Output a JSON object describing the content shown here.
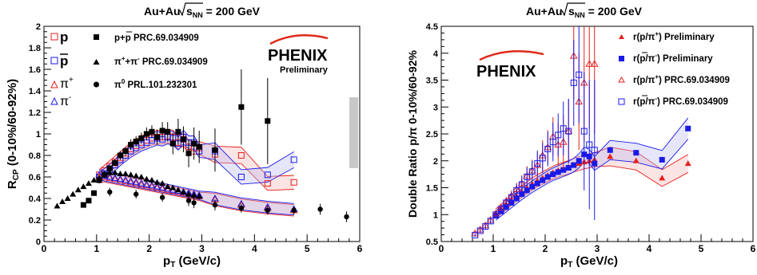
{
  "colors": {
    "red": "#e8201c",
    "blue": "#1a1ae8",
    "black": "#000000",
    "band_red": "#f3b3b3",
    "band_blue": "#b8b8f0",
    "sys_gray": "#c8c8c8",
    "phenix_arc": "#e02a1a"
  },
  "chart_data": [
    {
      "type": "scatter",
      "title": "Au+Au √s_NN = 200 GeV",
      "title_parts": {
        "prefix": "Au+Au",
        "sqrt": "s",
        "sub": "NN",
        "suffix": " = 200 GeV"
      },
      "xlabel": "p_T (GeV/c)",
      "xlabel_parts": {
        "main": "p",
        "sub": "T",
        "rest": " (GeV/c)"
      },
      "ylabel": "R_CP (0-10%/60-92%)",
      "ylabel_parts": {
        "main": "R",
        "sub": "CP",
        "rest": " (0-10%/60-92%)"
      },
      "xlim": [
        0,
        6
      ],
      "ylim": [
        0,
        2
      ],
      "xticks": [
        "0",
        "1",
        "2",
        "3",
        "4",
        "5",
        "6"
      ],
      "yticks": [
        "0",
        "0.2",
        "0.4",
        "0.6",
        "0.8",
        "1",
        "1.2",
        "1.4",
        "1.6",
        "1.8",
        "2"
      ],
      "logo": {
        "text": "PHENIX",
        "sub": "Preliminary"
      },
      "legend_left": [
        "p",
        "p",
        "π⁺",
        "π⁻"
      ],
      "legend_left_parts": [
        {
          "base": "p",
          "sup": ""
        },
        {
          "base": "p",
          "sup": "",
          "bar": true
        },
        {
          "base": "π",
          "sup": "+"
        },
        {
          "base": "π",
          "sup": "-"
        }
      ],
      "legend_right": [
        "p+p PRC.69.034909",
        "π⁺+π⁻ PRC.69.034909",
        "π⁰ PRL.101.232301"
      ],
      "legend_right_parts": [
        {
          "a": "p+",
          "bar": "p",
          "b": " PRC.69.034909"
        },
        {
          "a": "π",
          "sup1": "+",
          "mid": "+π",
          "sup2": "-",
          "b": " PRC.69.034909"
        },
        {
          "a": "π",
          "sup1": "0",
          "b": " PRL.101.232301"
        }
      ],
      "series": [
        {
          "name": "p",
          "marker": "open-square",
          "color": "red",
          "x": [
            1.05,
            1.15,
            1.25,
            1.35,
            1.45,
            1.55,
            1.65,
            1.75,
            1.85,
            1.95,
            2.05,
            2.15,
            2.25,
            2.35,
            2.45,
            2.55,
            2.65,
            2.75,
            2.85,
            2.95,
            3.25,
            3.75,
            4.25,
            4.75
          ],
          "y": [
            0.62,
            0.66,
            0.7,
            0.74,
            0.78,
            0.82,
            0.86,
            0.89,
            0.92,
            0.94,
            0.96,
            0.97,
            0.97,
            0.98,
            0.97,
            0.92,
            0.95,
            0.88,
            0.87,
            0.87,
            0.81,
            0.8,
            0.54,
            0.55
          ]
        },
        {
          "name": "p̄",
          "marker": "open-square",
          "color": "blue",
          "x": [
            1.05,
            1.15,
            1.25,
            1.35,
            1.45,
            1.55,
            1.65,
            1.75,
            1.85,
            1.95,
            2.05,
            2.15,
            2.25,
            2.35,
            2.45,
            2.55,
            2.65,
            2.75,
            2.85,
            2.95,
            3.25,
            3.75,
            4.25,
            4.75
          ],
          "y": [
            0.6,
            0.63,
            0.67,
            0.71,
            0.76,
            0.8,
            0.84,
            0.87,
            0.9,
            0.92,
            0.94,
            0.96,
            0.95,
            0.97,
            0.96,
            0.91,
            0.97,
            0.92,
            0.92,
            0.84,
            0.84,
            0.6,
            0.62,
            0.76
          ]
        },
        {
          "name": "π⁺",
          "marker": "open-triangle",
          "color": "red",
          "x": [
            1.05,
            1.15,
            1.25,
            1.35,
            1.45,
            1.55,
            1.65,
            1.75,
            1.85,
            1.95,
            2.05,
            2.15,
            2.25,
            2.35,
            2.45,
            2.55,
            2.65,
            2.75,
            2.85,
            2.95,
            3.25,
            3.75,
            4.25,
            4.75
          ],
          "y": [
            0.6,
            0.6,
            0.59,
            0.58,
            0.57,
            0.56,
            0.55,
            0.54,
            0.53,
            0.52,
            0.51,
            0.5,
            0.49,
            0.48,
            0.47,
            0.46,
            0.45,
            0.44,
            0.43,
            0.42,
            0.39,
            0.34,
            0.31,
            0.29
          ]
        },
        {
          "name": "π⁻",
          "marker": "open-triangle",
          "color": "blue",
          "x": [
            1.05,
            1.15,
            1.25,
            1.35,
            1.45,
            1.55,
            1.65,
            1.75,
            1.85,
            1.95,
            2.05,
            2.15,
            2.25,
            2.35,
            2.45,
            2.55,
            2.65,
            2.75,
            2.85,
            2.95,
            3.25,
            3.75,
            4.25,
            4.75
          ],
          "y": [
            0.62,
            0.61,
            0.6,
            0.59,
            0.58,
            0.57,
            0.56,
            0.55,
            0.54,
            0.53,
            0.52,
            0.51,
            0.5,
            0.49,
            0.48,
            0.47,
            0.46,
            0.45,
            0.44,
            0.43,
            0.4,
            0.35,
            0.32,
            0.3
          ]
        },
        {
          "name": "p+p̄ PRC.69.034909",
          "marker": "filled-square",
          "color": "black",
          "x": [
            0.75,
            0.85,
            0.95,
            1.05,
            1.15,
            1.25,
            1.35,
            1.45,
            1.55,
            1.65,
            1.75,
            1.85,
            1.95,
            2.05,
            2.15,
            2.25,
            2.35,
            2.45,
            2.55,
            2.65,
            2.75,
            2.85,
            2.95,
            3.25,
            3.75,
            4.25
          ],
          "y": [
            0.34,
            0.38,
            0.45,
            0.57,
            0.62,
            0.68,
            0.73,
            0.8,
            0.84,
            0.9,
            0.93,
            0.96,
            1.0,
            1.02,
            0.97,
            1.03,
            1.02,
            0.91,
            1.02,
            0.95,
            0.82,
            0.91,
            0.88,
            0.85,
            1.25,
            1.12
          ],
          "err": [
            0.02,
            0.02,
            0.02,
            0.03,
            0.03,
            0.03,
            0.03,
            0.04,
            0.04,
            0.05,
            0.05,
            0.05,
            0.06,
            0.06,
            0.07,
            0.08,
            0.09,
            0.1,
            0.12,
            0.12,
            0.13,
            0.15,
            0.15,
            0.2,
            0.35,
            0.4
          ]
        },
        {
          "name": "π⁺+π⁻ PRC.69.034909",
          "marker": "filled-triangle",
          "color": "black",
          "x": [
            0.25,
            0.35,
            0.45,
            0.55,
            0.65,
            0.75,
            0.85,
            0.95,
            1.05,
            1.15,
            1.25,
            1.35,
            1.45,
            1.55,
            1.65,
            1.75,
            1.85,
            1.95,
            2.05,
            2.15,
            2.25,
            2.35,
            2.45,
            2.55,
            2.65,
            2.75,
            2.85,
            2.95
          ],
          "y": [
            0.33,
            0.37,
            0.4,
            0.44,
            0.48,
            0.51,
            0.54,
            0.57,
            0.59,
            0.63,
            0.64,
            0.64,
            0.63,
            0.63,
            0.62,
            0.61,
            0.6,
            0.58,
            0.57,
            0.55,
            0.54,
            0.51,
            0.5,
            0.48,
            0.46,
            0.44,
            0.43,
            0.42
          ],
          "err": [
            0.01,
            0.01,
            0.01,
            0.01,
            0.01,
            0.01,
            0.01,
            0.01,
            0.01,
            0.01,
            0.01,
            0.01,
            0.01,
            0.01,
            0.01,
            0.01,
            0.01,
            0.01,
            0.02,
            0.02,
            0.02,
            0.02,
            0.02,
            0.02,
            0.03,
            0.03,
            0.03,
            0.03
          ]
        },
        {
          "name": "π⁰ PRL.101.232301",
          "marker": "filled-circle",
          "color": "black",
          "x": [
            1.25,
            1.75,
            2.25,
            2.75,
            2.85,
            3.25,
            3.75,
            4.25,
            4.75,
            5.25,
            5.75
          ],
          "y": [
            0.46,
            0.44,
            0.41,
            0.38,
            0.36,
            0.34,
            0.31,
            0.29,
            0.29,
            0.3,
            0.23
          ],
          "err": [
            0.04,
            0.04,
            0.04,
            0.05,
            0.05,
            0.05,
            0.04,
            0.04,
            0.04,
            0.05,
            0.05
          ]
        }
      ]
    },
    {
      "type": "scatter",
      "title": "Au+Au √s_NN = 200 GeV",
      "title_parts": {
        "prefix": "Au+Au",
        "sqrt": "s",
        "sub": "NN",
        "suffix": " = 200 GeV"
      },
      "xlabel": "p_T (GeV/c)",
      "xlabel_parts": {
        "main": "p",
        "sub": "T",
        "rest": " (GeV/c)"
      },
      "ylabel": "Double Ratio p/π 0-10%/60-92%",
      "ylim": [
        0.5,
        4.5
      ],
      "xlim": [
        0,
        6
      ],
      "xticks": [
        "0",
        "1",
        "2",
        "3",
        "4",
        "5",
        "6"
      ],
      "yticks": [
        "0.5",
        "1",
        "1.5",
        "2",
        "2.5",
        "3",
        "3.5",
        "4",
        "4.5"
      ],
      "logo": {
        "text": "PHENIX"
      },
      "legend": [
        "r(p/π⁺) Preliminary",
        "r(p̄/π⁻) Preliminary",
        "r(p/π⁺) PRC.69.034909",
        "r(p̄/π⁻) PRC.69.034909"
      ],
      "legend_parts": [
        {
          "a": "r(p/π",
          "sup": "+",
          "b": ") Preliminary",
          "bar": false
        },
        {
          "a": "r(",
          "barp": "p",
          "c": "/π",
          "sup": "-",
          "b": ") Preliminary",
          "bar": true
        },
        {
          "a": "r(p/π",
          "sup": "+",
          "b": ") PRC.69.034909",
          "bar": false
        },
        {
          "a": "r(",
          "barp": "p",
          "c": "/π",
          "sup": "-",
          "b": ") PRC.69.034909",
          "bar": true
        }
      ],
      "series": [
        {
          "name": "r(p/π⁺) Preliminary",
          "marker": "filled-triangle",
          "color": "red",
          "x": [
            1.05,
            1.15,
            1.25,
            1.35,
            1.45,
            1.55,
            1.65,
            1.75,
            1.85,
            1.95,
            2.05,
            2.15,
            2.25,
            2.35,
            2.45,
            2.55,
            2.65,
            2.75,
            2.85,
            2.95,
            3.25,
            3.75,
            4.25,
            4.75
          ],
          "y": [
            1.02,
            1.1,
            1.18,
            1.27,
            1.35,
            1.43,
            1.5,
            1.57,
            1.63,
            1.68,
            1.73,
            1.78,
            1.82,
            1.85,
            1.88,
            1.92,
            1.95,
            1.98,
            2.0,
            2.02,
            2.08,
            2.0,
            1.68,
            1.95
          ]
        },
        {
          "name": "r(p̄/π⁻) Preliminary",
          "marker": "filled-square",
          "color": "blue",
          "x": [
            1.05,
            1.15,
            1.25,
            1.35,
            1.45,
            1.55,
            1.65,
            1.75,
            1.85,
            1.95,
            2.05,
            2.15,
            2.25,
            2.35,
            2.45,
            2.55,
            2.65,
            2.75,
            2.85,
            2.95,
            3.25,
            3.75,
            4.25,
            4.75
          ],
          "y": [
            0.98,
            1.06,
            1.14,
            1.22,
            1.3,
            1.38,
            1.45,
            1.52,
            1.58,
            1.64,
            1.7,
            1.75,
            1.79,
            1.83,
            1.87,
            1.92,
            2.0,
            2.12,
            2.08,
            1.95,
            2.2,
            2.15,
            2.02,
            2.6
          ]
        },
        {
          "name": "r(p/π⁺) PRC.69.034909",
          "marker": "open-triangle",
          "color": "red",
          "x": [
            0.65,
            0.75,
            0.85,
            0.95,
            1.05,
            1.15,
            1.25,
            1.35,
            1.45,
            1.55,
            1.65,
            1.75,
            1.85,
            1.95,
            2.05,
            2.15,
            2.25,
            2.35,
            2.45,
            2.55,
            2.65,
            2.75,
            2.85,
            2.95
          ],
          "y": [
            0.65,
            0.72,
            0.8,
            0.9,
            1.02,
            1.13,
            1.25,
            1.35,
            1.47,
            1.58,
            1.72,
            1.82,
            1.92,
            2.1,
            2.25,
            2.45,
            2.3,
            2.35,
            2.55,
            3.95,
            3.1,
            3.45,
            3.8,
            3.8
          ],
          "err": [
            0.03,
            0.04,
            0.05,
            0.05,
            0.06,
            0.07,
            0.08,
            0.1,
            0.12,
            0.15,
            0.18,
            0.2,
            0.24,
            0.28,
            0.32,
            0.36,
            0.4,
            0.5,
            0.6,
            0.8,
            0.9,
            1.1,
            1.2,
            1.3
          ]
        },
        {
          "name": "r(p̄/π⁻) PRC.69.034909",
          "marker": "open-square",
          "color": "blue",
          "x": [
            0.65,
            0.75,
            0.85,
            0.95,
            1.05,
            1.15,
            1.25,
            1.35,
            1.45,
            1.55,
            1.65,
            1.75,
            1.85,
            1.95,
            2.05,
            2.15,
            2.25,
            2.35,
            2.45,
            2.55,
            2.65,
            2.75,
            2.85,
            2.95
          ],
          "y": [
            0.62,
            0.7,
            0.78,
            0.88,
            1.0,
            1.1,
            1.22,
            1.32,
            1.45,
            1.56,
            1.7,
            1.8,
            1.95,
            2.05,
            2.22,
            2.35,
            2.48,
            2.6,
            2.55,
            3.45,
            3.6,
            2.55,
            2.3,
            2.2
          ],
          "err": [
            0.03,
            0.04,
            0.05,
            0.05,
            0.06,
            0.07,
            0.08,
            0.1,
            0.12,
            0.15,
            0.18,
            0.2,
            0.24,
            0.28,
            0.32,
            0.36,
            0.4,
            0.5,
            0.6,
            0.8,
            0.9,
            1.1,
            1.2,
            1.3
          ]
        }
      ]
    }
  ]
}
